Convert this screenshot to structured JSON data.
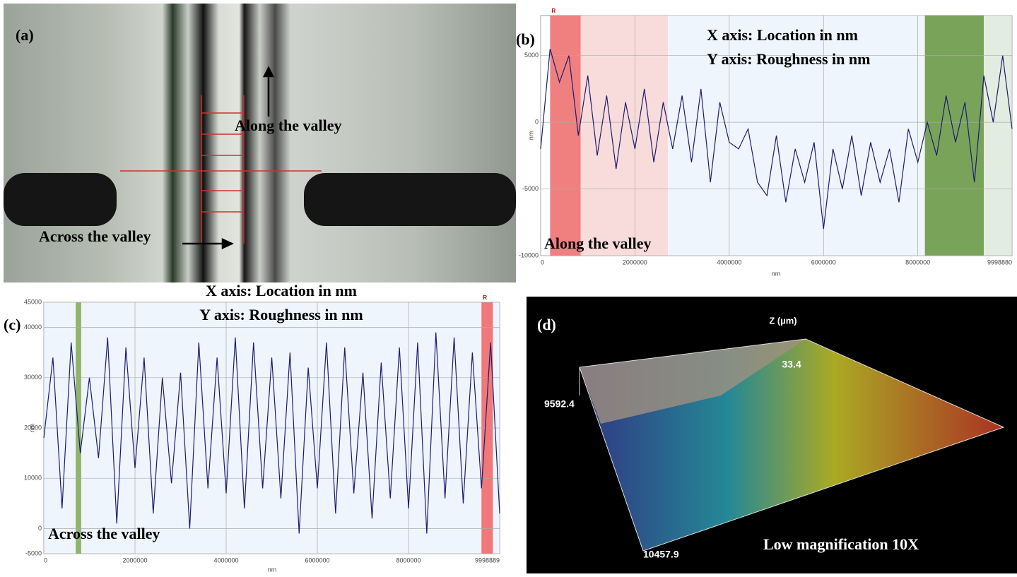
{
  "chart_data": [
    {
      "type": "line",
      "label": "(b)",
      "annotations": [
        "X axis: Location in nm",
        "Y axis: Roughness in nm",
        "Along the valley"
      ],
      "x_label": "nm",
      "y_label": "nm",
      "color": "#1c1c70",
      "grid": true,
      "xlim": [
        0,
        9998880
      ],
      "xticks": [
        0,
        2000000,
        4000000,
        6000000,
        8000000,
        9998880
      ],
      "ylim": [
        -10000,
        8000
      ],
      "yticks": [
        -10000,
        -5000,
        0,
        5000
      ],
      "regions": [
        {
          "start": 200000,
          "end": 850000,
          "color": "#f08080",
          "label": "R"
        },
        {
          "start": 850000,
          "end": 2700000,
          "color": "#f8dcdc"
        },
        {
          "start": 2700000,
          "end": 8150000,
          "color": "#eef5fc"
        },
        {
          "start": 8150000,
          "end": 9400000,
          "color": "#7aa35a"
        },
        {
          "start": 9400000,
          "end": 9998880,
          "color": "#e3ece0"
        }
      ],
      "x": [
        0,
        200000,
        400000,
        600000,
        800000,
        1000000,
        1200000,
        1400000,
        1600000,
        1800000,
        2000000,
        2200000,
        2400000,
        2600000,
        2800000,
        3000000,
        3200000,
        3400000,
        3600000,
        3800000,
        4000000,
        4200000,
        4400000,
        4600000,
        4800000,
        5000000,
        5200000,
        5400000,
        5600000,
        5800000,
        6000000,
        6200000,
        6400000,
        6600000,
        6800000,
        7000000,
        7200000,
        7400000,
        7600000,
        7800000,
        8000000,
        8200000,
        8400000,
        8600000,
        8800000,
        9000000,
        9200000,
        9400000,
        9600000,
        9800000,
        9998880
      ],
      "values": [
        -2000,
        5500,
        3000,
        5000,
        -1000,
        3500,
        -2500,
        2000,
        -3500,
        1500,
        -2000,
        2500,
        -3000,
        1500,
        -2000,
        2000,
        -3000,
        2500,
        -4500,
        1500,
        -1500,
        -2000,
        -500,
        -4500,
        -5500,
        -1000,
        -6000,
        -2000,
        -4500,
        -1500,
        -8000,
        -2000,
        -5000,
        -1000,
        -5500,
        -1500,
        -4500,
        -2000,
        -6000,
        -500,
        -3000,
        0,
        -2500,
        2000,
        -1500,
        1500,
        -4500,
        3500,
        0,
        5000,
        -500
      ]
    },
    {
      "type": "line",
      "label": "(c)",
      "annotations": [
        "X axis: Location in nm",
        "Y axis: Roughness in nm",
        "Across the valley"
      ],
      "x_label": "nm",
      "y_label": "nm",
      "color": "#1c1c70",
      "grid": true,
      "xlim": [
        0,
        9998889
      ],
      "xticks": [
        0,
        2000000,
        4000000,
        6000000,
        8000000,
        9998889
      ],
      "ylim": [
        -5000,
        45000
      ],
      "yticks": [
        -5000,
        0,
        10000,
        20000,
        30000,
        40000,
        45000
      ],
      "regions": [
        {
          "start": 0,
          "end": 9998889,
          "color": "#eef5fc"
        },
        {
          "start": 700000,
          "end": 820000,
          "color": "#8fb56a"
        },
        {
          "start": 9600000,
          "end": 9850000,
          "color": "#f07878",
          "label": "R"
        }
      ],
      "x": [
        0,
        200000,
        400000,
        600000,
        800000,
        1000000,
        1200000,
        1400000,
        1600000,
        1800000,
        2000000,
        2200000,
        2400000,
        2600000,
        2800000,
        3000000,
        3200000,
        3400000,
        3600000,
        3800000,
        4000000,
        4200000,
        4400000,
        4600000,
        4800000,
        5000000,
        5200000,
        5400000,
        5600000,
        5800000,
        6000000,
        6200000,
        6400000,
        6600000,
        6800000,
        7000000,
        7200000,
        7400000,
        7600000,
        7800000,
        8000000,
        8200000,
        8400000,
        8600000,
        8800000,
        9000000,
        9200000,
        9400000,
        9600000,
        9800000,
        9998889
      ],
      "values": [
        18000,
        34000,
        4000,
        37000,
        15000,
        30000,
        14000,
        38000,
        1000,
        36000,
        12000,
        34000,
        3000,
        30000,
        9000,
        31000,
        0,
        37000,
        8000,
        34000,
        7000,
        38000,
        4000,
        37000,
        8000,
        34000,
        6000,
        35000,
        -1000,
        32000,
        8000,
        37000,
        3000,
        36000,
        7000,
        31000,
        2000,
        33000,
        6000,
        36000,
        4000,
        37000,
        -1000,
        39000,
        6000,
        38000,
        5000,
        35000,
        8000,
        37000,
        3000
      ]
    }
  ],
  "image_a": {
    "label": "(a)",
    "annotations": [
      "Along the valley",
      "Across the valley"
    ]
  },
  "image_d": {
    "label": "(d)",
    "axis_title": "Z (µm)",
    "z_max": 33.4,
    "y_size": 9592.4,
    "x_size": 10457.9,
    "caption": "Low magnification 10X"
  }
}
